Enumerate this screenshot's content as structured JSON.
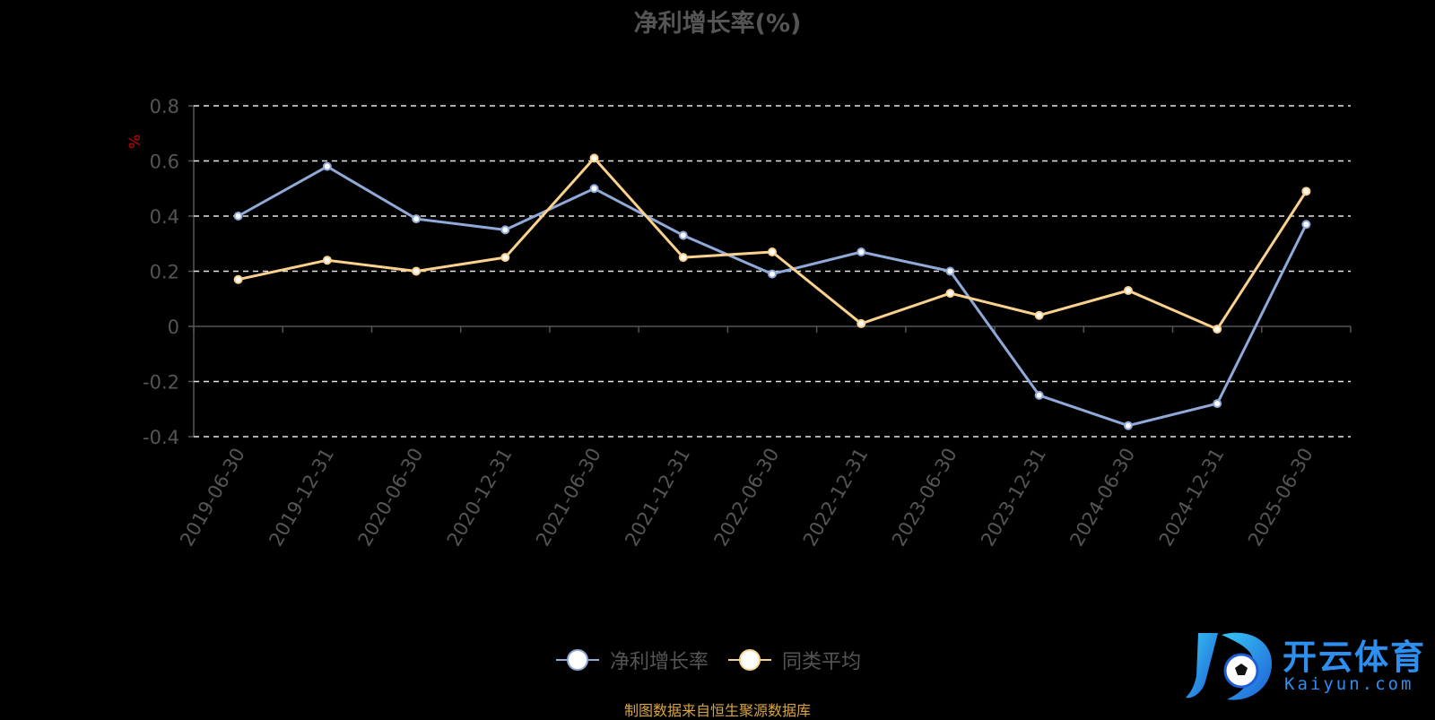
{
  "chart_data": {
    "type": "line",
    "title": "净利增长率(%)",
    "xlabel": "",
    "ylabel": "%",
    "ylim": [
      -0.4,
      0.8
    ],
    "yticks": [
      0.8,
      0.6,
      0.4,
      0.2,
      0,
      -0.2,
      -0.4
    ],
    "ytick_labels": [
      "0.8",
      "0.6",
      "0.4",
      "0.2",
      "0",
      "-0.2",
      "-0.4"
    ],
    "grid": true,
    "legend_position": "bottom",
    "categories": [
      "2019-06-30",
      "2019-12-31",
      "2020-06-30",
      "2020-12-31",
      "2021-06-30",
      "2021-12-31",
      "2022-06-30",
      "2022-12-31",
      "2023-06-30",
      "2023-12-31",
      "2024-06-30",
      "2024-12-31",
      "2025-06-30"
    ],
    "series": [
      {
        "name": "净利增长率",
        "color": "#8fa9d8",
        "values": [
          0.4,
          0.58,
          0.39,
          0.35,
          0.5,
          0.33,
          0.19,
          0.27,
          0.2,
          -0.25,
          -0.36,
          -0.28,
          0.37
        ]
      },
      {
        "name": "同类平均",
        "color": "#fbd18e",
        "values": [
          0.17,
          0.24,
          0.2,
          0.25,
          0.61,
          0.25,
          0.27,
          0.01,
          0.12,
          0.04,
          0.13,
          -0.01,
          0.49
        ]
      }
    ]
  },
  "source_text": "制图数据来自恒生聚源数据库",
  "logo": {
    "name": "开云体育",
    "url": "Kaiyun.com"
  }
}
